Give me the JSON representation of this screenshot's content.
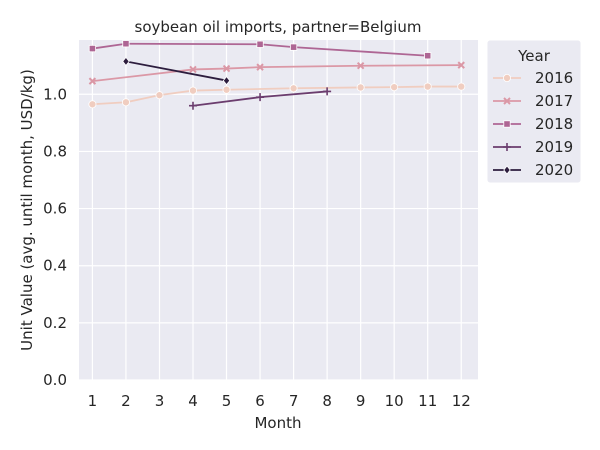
{
  "chart_data": {
    "type": "line",
    "title": "soybean oil imports, partner=Belgium",
    "xlabel": "Month",
    "ylabel": "Unit Value (avg. until month, USD/kg)",
    "xlim": [
      0.6,
      12.5
    ],
    "ylim": [
      0.0,
      1.19
    ],
    "xticks": [
      1,
      2,
      3,
      4,
      5,
      6,
      7,
      8,
      9,
      10,
      11,
      12
    ],
    "yticks": [
      0.0,
      0.2,
      0.4,
      0.6,
      0.8,
      1.0
    ],
    "ytick_labels": [
      "0.0",
      "0.2",
      "0.4",
      "0.6",
      "0.8",
      "1.0"
    ],
    "grid": true,
    "legend": {
      "title": "Year",
      "placement": "outside-right-top"
    },
    "series": [
      {
        "name": "2016",
        "color": "#f0cdc0",
        "marker": "circle",
        "x": [
          1,
          2,
          3,
          4,
          5,
          7,
          9,
          10,
          11,
          12
        ],
        "y": [
          0.965,
          0.972,
          0.997,
          1.013,
          1.016,
          1.021,
          1.024,
          1.025,
          1.027,
          1.027
        ]
      },
      {
        "name": "2017",
        "color": "#db98a6",
        "marker": "x",
        "x": [
          1,
          4,
          5,
          6,
          9,
          12
        ],
        "y": [
          1.046,
          1.087,
          1.09,
          1.095,
          1.1,
          1.102
        ]
      },
      {
        "name": "2018",
        "color": "#ae6694",
        "marker": "square",
        "x": [
          1,
          2,
          6,
          7,
          11
        ],
        "y": [
          1.16,
          1.177,
          1.175,
          1.165,
          1.135
        ]
      },
      {
        "name": "2019",
        "color": "#6b3d6e",
        "marker": "plus",
        "x": [
          4,
          6,
          8
        ],
        "y": [
          0.96,
          0.99,
          1.01
        ]
      },
      {
        "name": "2020",
        "color": "#2d1d3e",
        "marker": "diamond",
        "x": [
          2,
          5
        ],
        "y": [
          1.115,
          1.048
        ]
      }
    ]
  }
}
